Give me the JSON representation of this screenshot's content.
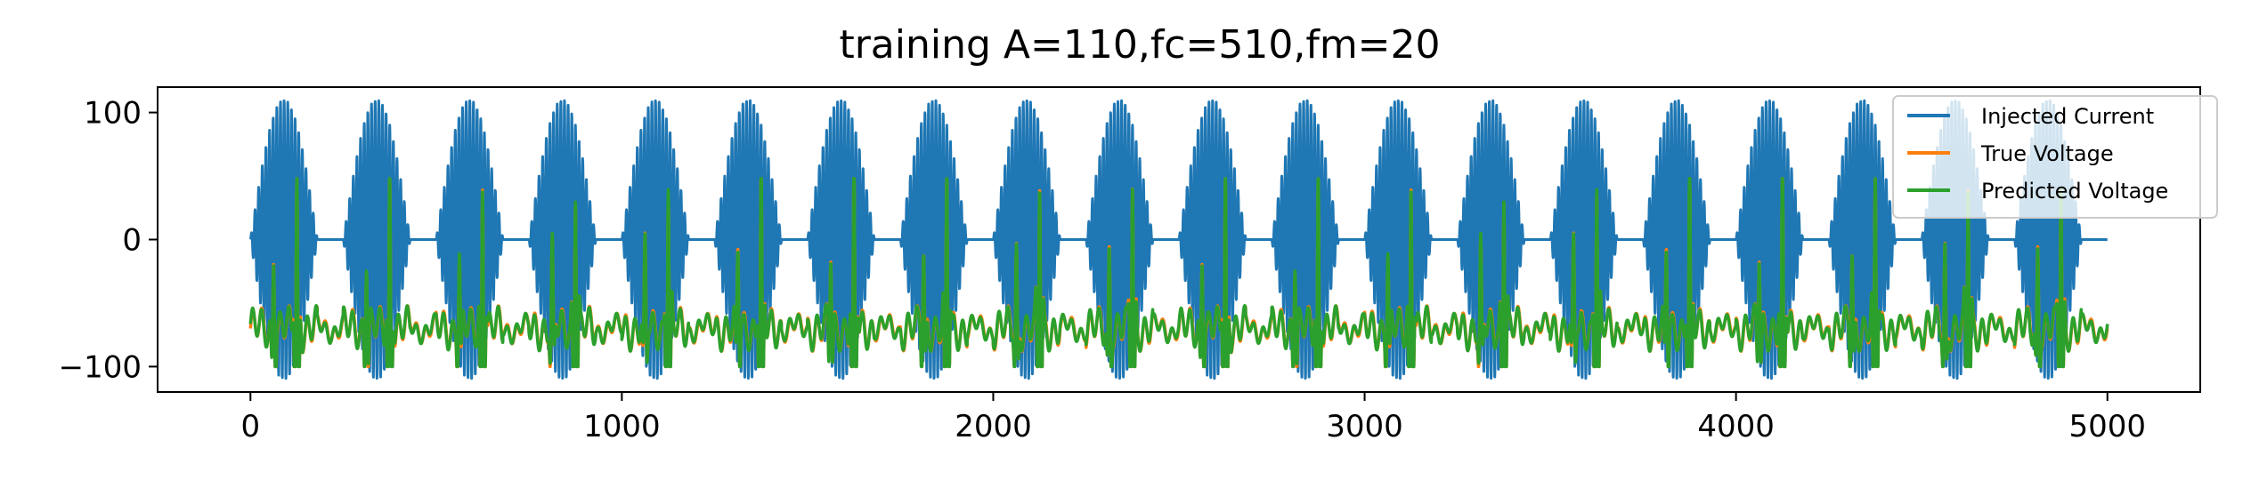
{
  "chart_data": {
    "type": "line",
    "title": "training A=110,fc=510,fm=20",
    "xlabel": "",
    "ylabel": "",
    "xlim": [
      -250,
      5250
    ],
    "ylim": [
      -120,
      120
    ],
    "x_ticks": [
      0,
      1000,
      2000,
      3000,
      4000,
      5000
    ],
    "x_tick_labels": [
      "0",
      "1000",
      "2000",
      "3000",
      "4000",
      "5000"
    ],
    "y_ticks": [
      -100,
      0,
      100
    ],
    "y_tick_labels": [
      "−100",
      "0",
      "100"
    ],
    "n_samples": 5000,
    "amplitude": 110,
    "carrier_frequency": 510,
    "modulation_frequency": 20,
    "legend_position": "upper right",
    "series": [
      {
        "name": "Injected Current",
        "color": "#1f77b4",
        "range": [
          -110,
          110
        ]
      },
      {
        "name": "True Voltage",
        "color": "#ff7f0e",
        "range": [
          -100,
          45
        ]
      },
      {
        "name": "Predicted Voltage",
        "color": "#2ca02c",
        "range": [
          -100,
          45
        ]
      }
    ]
  }
}
